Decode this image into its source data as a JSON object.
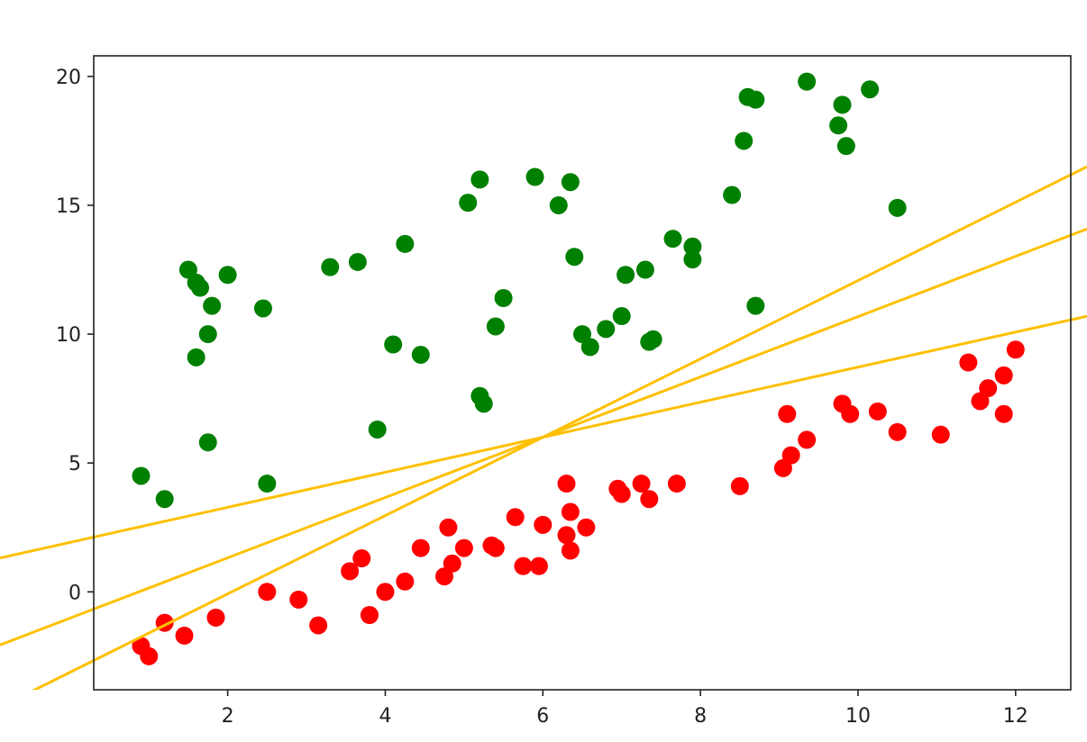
{
  "chart_data": {
    "type": "scatter",
    "title": "",
    "xlabel": "",
    "ylabel": "",
    "xlim": [
      0.3,
      12.7
    ],
    "ylim": [
      -3.8,
      20.8
    ],
    "xticks": [
      2,
      4,
      6,
      8,
      10,
      12
    ],
    "yticks": [
      0,
      5,
      10,
      15,
      20
    ],
    "grid": false,
    "legend": "none",
    "series": [
      {
        "color": "#008000",
        "points": [
          [
            0.9,
            4.5
          ],
          [
            1.2,
            3.6
          ],
          [
            1.5,
            12.5
          ],
          [
            1.6,
            12.0
          ],
          [
            1.65,
            11.8
          ],
          [
            1.6,
            9.1
          ],
          [
            1.75,
            10.0
          ],
          [
            1.8,
            11.1
          ],
          [
            2.0,
            12.3
          ],
          [
            1.75,
            5.8
          ],
          [
            2.45,
            11.0
          ],
          [
            2.5,
            4.2
          ],
          [
            3.3,
            12.6
          ],
          [
            3.65,
            12.8
          ],
          [
            3.9,
            6.3
          ],
          [
            4.1,
            9.6
          ],
          [
            4.25,
            13.5
          ],
          [
            4.45,
            9.2
          ],
          [
            5.05,
            15.1
          ],
          [
            5.2,
            16.0
          ],
          [
            5.2,
            7.6
          ],
          [
            5.25,
            7.3
          ],
          [
            5.4,
            10.3
          ],
          [
            5.5,
            11.4
          ],
          [
            5.9,
            16.1
          ],
          [
            6.2,
            15.0
          ],
          [
            6.35,
            15.9
          ],
          [
            6.4,
            13.0
          ],
          [
            6.5,
            10.0
          ],
          [
            6.6,
            9.5
          ],
          [
            6.8,
            10.2
          ],
          [
            7.0,
            10.7
          ],
          [
            7.05,
            12.3
          ],
          [
            7.3,
            12.5
          ],
          [
            7.35,
            9.7
          ],
          [
            7.4,
            9.8
          ],
          [
            7.65,
            13.7
          ],
          [
            7.9,
            13.4
          ],
          [
            7.9,
            12.9
          ],
          [
            8.4,
            15.4
          ],
          [
            8.55,
            17.5
          ],
          [
            8.6,
            19.2
          ],
          [
            8.7,
            19.1
          ],
          [
            8.7,
            11.1
          ],
          [
            9.35,
            19.8
          ],
          [
            9.75,
            18.1
          ],
          [
            9.8,
            18.9
          ],
          [
            9.85,
            17.3
          ],
          [
            10.15,
            19.5
          ],
          [
            10.5,
            14.9
          ]
        ]
      },
      {
        "color": "#ff0000",
        "points": [
          [
            0.9,
            -2.1
          ],
          [
            1.0,
            -2.5
          ],
          [
            1.2,
            -1.2
          ],
          [
            1.45,
            -1.7
          ],
          [
            1.85,
            -1.0
          ],
          [
            2.5,
            0.0
          ],
          [
            2.9,
            -0.3
          ],
          [
            3.15,
            -1.3
          ],
          [
            3.55,
            0.8
          ],
          [
            3.7,
            1.3
          ],
          [
            3.8,
            -0.9
          ],
          [
            4.0,
            0.0
          ],
          [
            4.25,
            0.4
          ],
          [
            4.45,
            1.7
          ],
          [
            4.75,
            0.6
          ],
          [
            4.8,
            2.5
          ],
          [
            4.85,
            1.1
          ],
          [
            5.0,
            1.7
          ],
          [
            5.35,
            1.8
          ],
          [
            5.4,
            1.7
          ],
          [
            5.65,
            2.9
          ],
          [
            5.75,
            1.0
          ],
          [
            5.95,
            1.0
          ],
          [
            6.0,
            2.6
          ],
          [
            6.3,
            4.2
          ],
          [
            6.3,
            2.2
          ],
          [
            6.35,
            1.6
          ],
          [
            6.35,
            3.1
          ],
          [
            6.55,
            2.5
          ],
          [
            6.95,
            4.0
          ],
          [
            7.0,
            3.8
          ],
          [
            7.25,
            4.2
          ],
          [
            7.35,
            3.6
          ],
          [
            7.7,
            4.2
          ],
          [
            8.5,
            4.1
          ],
          [
            9.05,
            4.8
          ],
          [
            9.1,
            6.9
          ],
          [
            9.15,
            5.3
          ],
          [
            9.35,
            5.9
          ],
          [
            9.8,
            7.3
          ],
          [
            9.9,
            6.9
          ],
          [
            10.25,
            7.0
          ],
          [
            10.5,
            6.2
          ],
          [
            11.05,
            6.1
          ],
          [
            11.4,
            8.9
          ],
          [
            11.55,
            7.4
          ],
          [
            11.65,
            7.9
          ],
          [
            11.85,
            8.4
          ],
          [
            11.85,
            6.9
          ],
          [
            12.0,
            9.4
          ]
        ]
      }
    ],
    "lines": [
      {
        "color": "#ffc000",
        "slope": 0.68,
        "intercept": 1.92
      },
      {
        "color": "#ffc000",
        "slope": 1.17,
        "intercept": -1.02
      },
      {
        "color": "#ffc000",
        "slope": 1.52,
        "intercept": -3.12
      }
    ]
  }
}
